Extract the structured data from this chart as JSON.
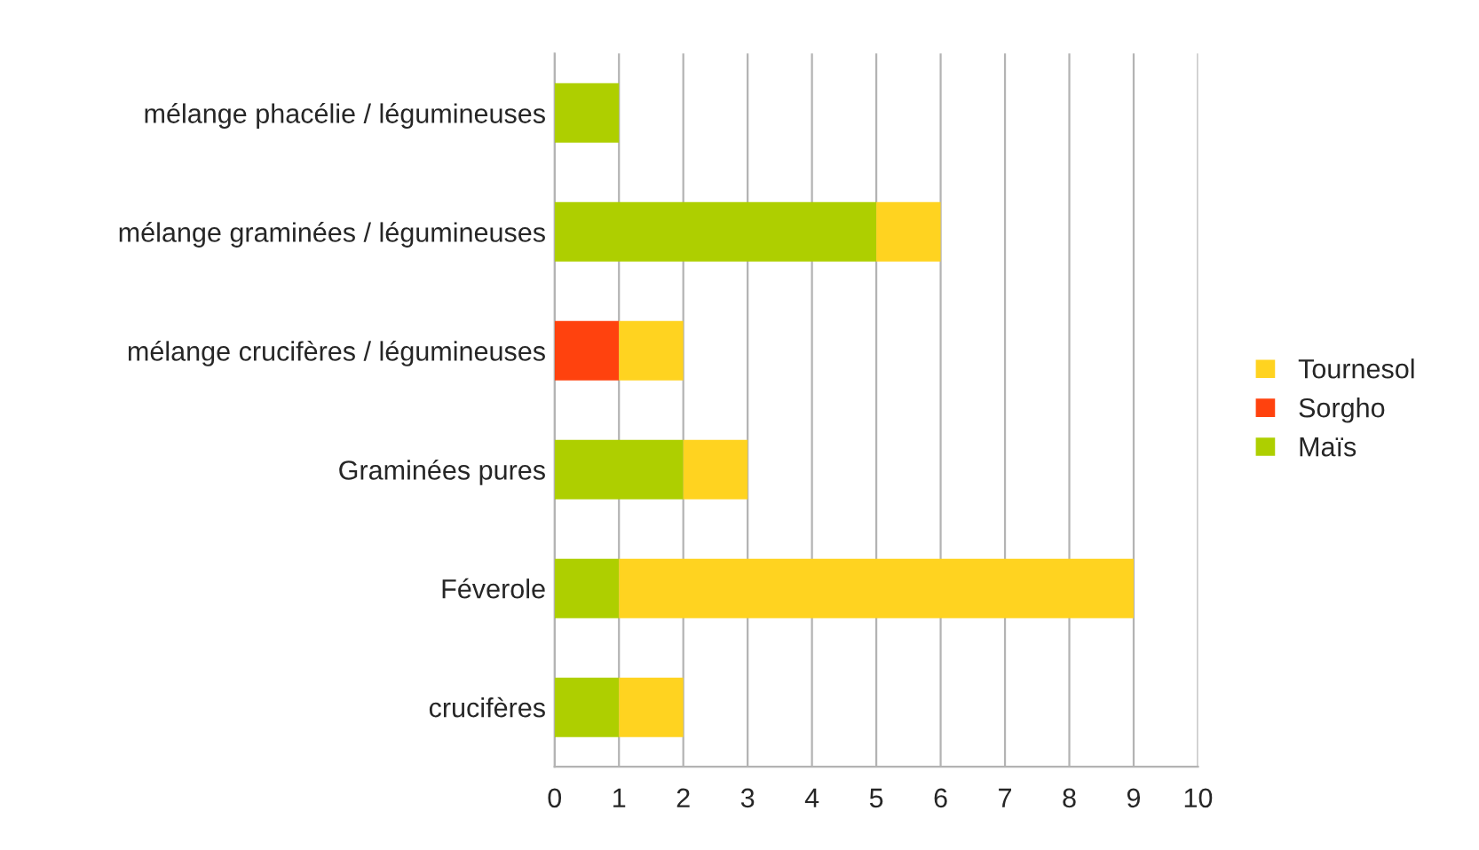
{
  "chart_data": {
    "type": "bar",
    "orientation": "horizontal",
    "stacked": true,
    "categories": [
      "mélange phacélie / légumineuses",
      "mélange graminées / légumineuses",
      "mélange crucifères / légumineuses",
      "Graminées pures",
      "Féverole",
      "crucifères"
    ],
    "series": [
      {
        "name": "Maïs",
        "color": "#aecf00",
        "values": [
          1,
          5,
          null,
          2,
          1,
          1
        ]
      },
      {
        "name": "Sorgho",
        "color": "#ff420e",
        "values": [
          null,
          null,
          1,
          null,
          null,
          null
        ]
      },
      {
        "name": "Tournesol",
        "color": "#ffd320",
        "values": [
          null,
          1,
          1,
          1,
          8,
          1
        ]
      }
    ],
    "xlim": [
      0,
      10
    ],
    "xticks": [
      0,
      1,
      2,
      3,
      4,
      5,
      6,
      7,
      8,
      9,
      10
    ],
    "grid": "x",
    "legend": "right"
  }
}
